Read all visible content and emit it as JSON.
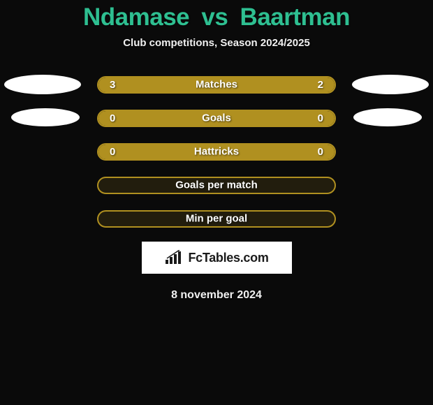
{
  "header": {
    "player1": "Ndamase",
    "vs": "vs",
    "player2": "Baartman",
    "subtitle": "Club competitions, Season 2024/2025"
  },
  "colors": {
    "title": "#2ebf91",
    "subtitle": "#f0f0f0",
    "pill_fill": "#b09020",
    "pill_border": "#b09020",
    "pill_empty_bg": "rgba(176,144,32,0.15)",
    "text": "#ffffff",
    "ellipse": "#ffffff",
    "background": "#0a0a0a",
    "logo_bg": "#ffffff",
    "logo_text": "#1a1a1a"
  },
  "rows": [
    {
      "label": "Matches",
      "left_val": "3",
      "right_val": "2",
      "fill_pct": 100,
      "show_ellipses": true,
      "ellipse_class": "0"
    },
    {
      "label": "Goals",
      "left_val": "0",
      "right_val": "0",
      "fill_pct": 100,
      "show_ellipses": true,
      "ellipse_class": "1"
    },
    {
      "label": "Hattricks",
      "left_val": "0",
      "right_val": "0",
      "fill_pct": 100,
      "show_ellipses": false
    },
    {
      "label": "Goals per match",
      "left_val": "",
      "right_val": "",
      "fill_pct": 0,
      "show_ellipses": false
    },
    {
      "label": "Min per goal",
      "left_val": "",
      "right_val": "",
      "fill_pct": 0,
      "show_ellipses": false
    }
  ],
  "branding": {
    "logo_text": "FcTables.com"
  },
  "footer": {
    "date": "8 november 2024"
  },
  "style": {
    "title_fontsize": 35,
    "subtitle_fontsize": 15,
    "pill_width": 342,
    "pill_height": 25,
    "pill_radius": 13,
    "label_fontsize": 15
  }
}
